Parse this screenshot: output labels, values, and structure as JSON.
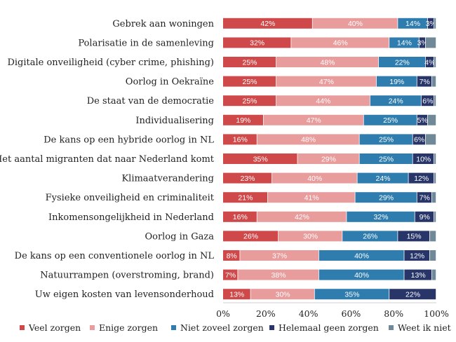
{
  "chart_data": {
    "type": "bar",
    "orientation": "horizontal",
    "stacked": true,
    "title": "",
    "xlabel": "",
    "ylabel": "",
    "xlim": [
      0,
      100
    ],
    "x_ticks": [
      "0%",
      "20%",
      "40%",
      "60%",
      "80%",
      "100%"
    ],
    "categories": [
      "Gebrek aan woningen",
      "Polarisatie in de samenleving",
      "Digitale onveiligheid (cyber crime, phishing)",
      "Oorlog in Oekraïne",
      "De staat van de democratie",
      "Individualisering",
      "De kans op een hybride oorlog in NL",
      "Het aantal migranten dat naar Nederland komt",
      "Klimaatverandering",
      "Fysieke onveiligheid en criminaliteit",
      "Inkomensongelijkheid in Nederland",
      "Oorlog in Gaza",
      "De kans op een conventionele oorlog in NL",
      "Natuurrampen (overstroming, brand)",
      "Uw eigen kosten van levensonderhoud"
    ],
    "series": [
      {
        "name": "Veel zorgen",
        "color": "#d0494a",
        "values": [
          42,
          32,
          25,
          25,
          25,
          19,
          16,
          35,
          23,
          21,
          16,
          26,
          8,
          7,
          13
        ]
      },
      {
        "name": "Enige zorgen",
        "color": "#e89c9c",
        "values": [
          40,
          46,
          48,
          47,
          44,
          47,
          48,
          29,
          40,
          41,
          42,
          30,
          37,
          38,
          30
        ]
      },
      {
        "name": "Niet zoveel zorgen",
        "color": "#2f7dae",
        "values": [
          14,
          14,
          22,
          19,
          24,
          25,
          25,
          25,
          24,
          29,
          32,
          26,
          40,
          40,
          35
        ]
      },
      {
        "name": "Helemaal geen zorgen",
        "color": "#283568",
        "values": [
          3,
          3,
          4,
          7,
          6,
          5,
          6,
          10,
          12,
          7,
          9,
          15,
          12,
          13,
          22
        ]
      },
      {
        "name": "Weet ik niet",
        "color": "#6f8999",
        "values": [
          1,
          5,
          1,
          2,
          1,
          4,
          5,
          1,
          1,
          2,
          1,
          3,
          3,
          2,
          0
        ]
      }
    ],
    "data_labels": [
      [
        "42%",
        "40%",
        "14%",
        "3%",
        ""
      ],
      [
        "32%",
        "46%",
        "14%",
        "3%",
        ""
      ],
      [
        "25%",
        "48%",
        "22%",
        "4%",
        ""
      ],
      [
        "25%",
        "47%",
        "19%",
        "7%",
        ""
      ],
      [
        "25%",
        "44%",
        "24%",
        "6%",
        ""
      ],
      [
        "19%",
        "47%",
        "25%",
        "5%",
        ""
      ],
      [
        "16%",
        "48%",
        "25%",
        "6%",
        ""
      ],
      [
        "35%",
        "29%",
        "25%",
        "10%",
        ""
      ],
      [
        "23%",
        "40%",
        "24%",
        "12%",
        ""
      ],
      [
        "21%",
        "41%",
        "29%",
        "7%",
        ""
      ],
      [
        "16%",
        "42%",
        "32%",
        "9%",
        ""
      ],
      [
        "26%",
        "30%",
        "26%",
        "15%",
        ""
      ],
      [
        "8%",
        "37%",
        "40%",
        "12%",
        ""
      ],
      [
        "7%",
        "38%",
        "40%",
        "13%",
        ""
      ],
      [
        "13%",
        "30%",
        "35%",
        "22%",
        ""
      ]
    ],
    "legend_position": "bottom",
    "grid": false
  }
}
